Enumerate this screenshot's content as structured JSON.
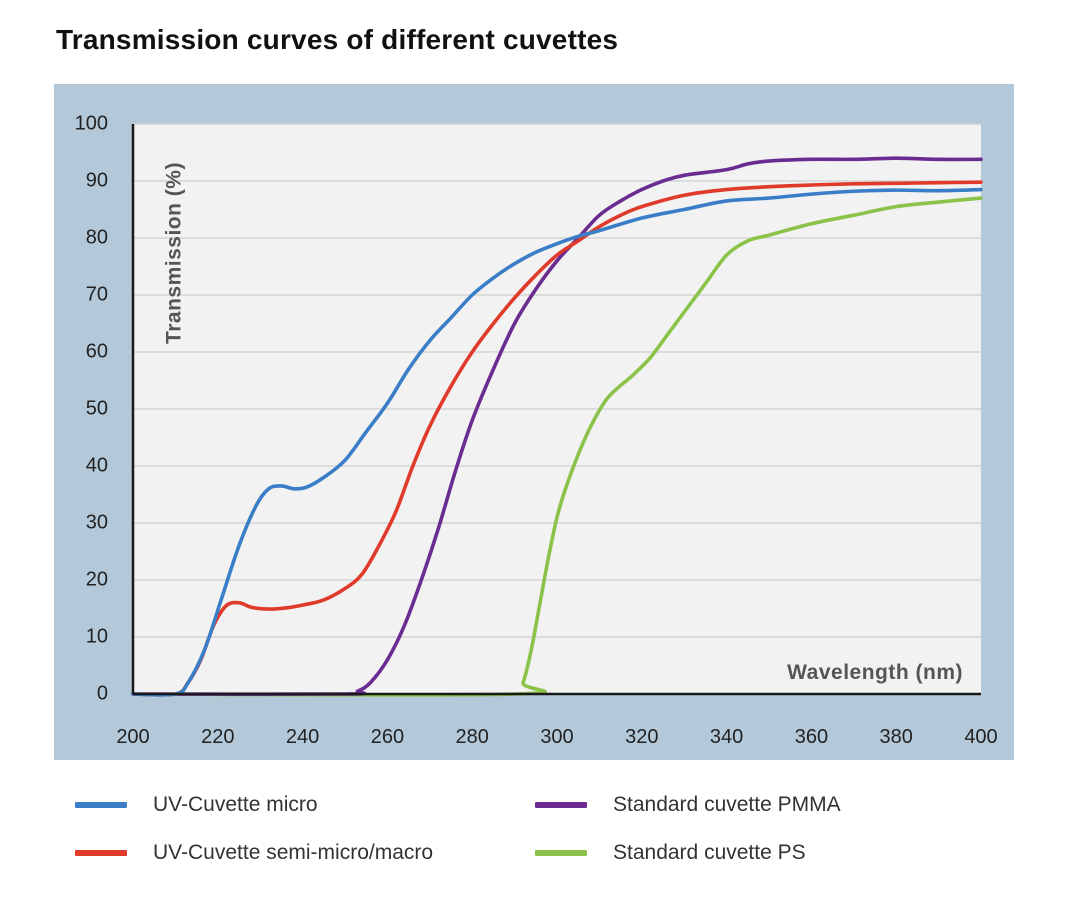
{
  "title": "Transmission curves of different cuvettes",
  "chart_data": {
    "type": "line",
    "title": "Transmission curves of different cuvettes",
    "xlabel": "Wavelength (nm)",
    "ylabel": "Transmission (%)",
    "xlim": [
      200,
      400
    ],
    "ylim": [
      0,
      100
    ],
    "x_ticks": [
      200,
      220,
      240,
      260,
      280,
      300,
      320,
      340,
      360,
      380,
      400
    ],
    "y_ticks": [
      0,
      10,
      20,
      30,
      40,
      50,
      60,
      70,
      80,
      90,
      100
    ],
    "grid": true,
    "legend_position": "bottom",
    "series": [
      {
        "name": "UV-Cuvette micro",
        "color": "#3a7ec8",
        "points": [
          [
            200,
            0
          ],
          [
            210,
            0
          ],
          [
            213,
            2
          ],
          [
            217,
            8
          ],
          [
            221,
            17
          ],
          [
            225,
            26
          ],
          [
            229,
            33
          ],
          [
            232,
            36
          ],
          [
            235,
            36.5
          ],
          [
            238,
            36
          ],
          [
            241,
            36.3
          ],
          [
            245,
            38
          ],
          [
            250,
            41
          ],
          [
            255,
            46
          ],
          [
            260,
            51
          ],
          [
            265,
            57
          ],
          [
            270,
            62
          ],
          [
            275,
            66
          ],
          [
            280,
            70
          ],
          [
            285,
            73
          ],
          [
            290,
            75.5
          ],
          [
            295,
            77.5
          ],
          [
            300,
            79
          ],
          [
            305,
            80.3
          ],
          [
            310,
            81.3
          ],
          [
            320,
            83.5
          ],
          [
            330,
            85
          ],
          [
            340,
            86.5
          ],
          [
            350,
            87
          ],
          [
            360,
            87.7
          ],
          [
            370,
            88.2
          ],
          [
            380,
            88.4
          ],
          [
            390,
            88.3
          ],
          [
            400,
            88.5
          ]
        ]
      },
      {
        "name": "UV-Cuvette semi-micro/macro",
        "color": "#e03a2a",
        "points": [
          [
            200,
            0
          ],
          [
            210,
            0
          ],
          [
            213,
            2
          ],
          [
            216,
            6
          ],
          [
            219,
            12
          ],
          [
            222,
            15.5
          ],
          [
            225,
            16
          ],
          [
            228,
            15.2
          ],
          [
            232,
            14.9
          ],
          [
            236,
            15.1
          ],
          [
            240,
            15.6
          ],
          [
            245,
            16.5
          ],
          [
            250,
            18.5
          ],
          [
            254,
            21
          ],
          [
            258,
            26
          ],
          [
            262,
            32
          ],
          [
            266,
            40
          ],
          [
            270,
            47
          ],
          [
            275,
            54
          ],
          [
            280,
            60
          ],
          [
            285,
            65
          ],
          [
            290,
            69.5
          ],
          [
            295,
            73.5
          ],
          [
            300,
            77
          ],
          [
            305,
            79.5
          ],
          [
            310,
            82
          ],
          [
            315,
            84
          ],
          [
            320,
            85.5
          ],
          [
            330,
            87.5
          ],
          [
            340,
            88.5
          ],
          [
            350,
            89
          ],
          [
            360,
            89.3
          ],
          [
            370,
            89.5
          ],
          [
            380,
            89.6
          ],
          [
            390,
            89.7
          ],
          [
            400,
            89.8
          ]
        ]
      },
      {
        "name": "Standard cuvette PMMA",
        "color": "#6a2c91",
        "points": [
          [
            200,
            0
          ],
          [
            250,
            0
          ],
          [
            253,
            0.5
          ],
          [
            256,
            2
          ],
          [
            260,
            6
          ],
          [
            264,
            12
          ],
          [
            268,
            20
          ],
          [
            272,
            29
          ],
          [
            276,
            39
          ],
          [
            280,
            48
          ],
          [
            285,
            57
          ],
          [
            290,
            65
          ],
          [
            295,
            71
          ],
          [
            300,
            76
          ],
          [
            305,
            80
          ],
          [
            310,
            84
          ],
          [
            315,
            86.5
          ],
          [
            320,
            88.5
          ],
          [
            325,
            90
          ],
          [
            330,
            91
          ],
          [
            340,
            92
          ],
          [
            345,
            93
          ],
          [
            350,
            93.5
          ],
          [
            360,
            93.8
          ],
          [
            370,
            93.8
          ],
          [
            380,
            94
          ],
          [
            390,
            93.8
          ],
          [
            400,
            93.8
          ]
        ]
      },
      {
        "name": "Standard cuvette PS",
        "color": "#8bc34a",
        "points": [
          [
            200,
            0
          ],
          [
            290,
            0
          ],
          [
            292,
            2
          ],
          [
            294,
            8
          ],
          [
            296,
            16
          ],
          [
            298,
            24
          ],
          [
            300,
            31
          ],
          [
            302,
            36
          ],
          [
            305,
            42
          ],
          [
            308,
            47
          ],
          [
            312,
            52
          ],
          [
            318,
            56
          ],
          [
            322,
            59
          ],
          [
            326,
            63
          ],
          [
            330,
            67
          ],
          [
            335,
            72
          ],
          [
            340,
            77
          ],
          [
            345,
            79.5
          ],
          [
            350,
            80.5
          ],
          [
            360,
            82.5
          ],
          [
            370,
            84
          ],
          [
            380,
            85.5
          ],
          [
            390,
            86.3
          ],
          [
            400,
            87
          ]
        ]
      }
    ]
  }
}
